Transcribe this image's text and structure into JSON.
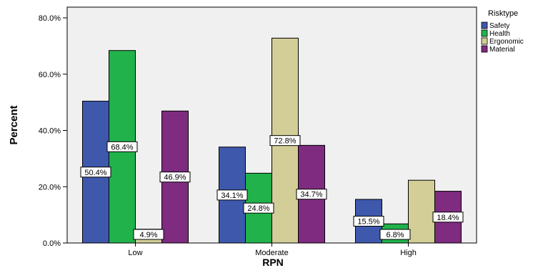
{
  "chart_data": {
    "type": "bar",
    "categories": [
      "Low",
      "Moderate",
      "High"
    ],
    "series": [
      {
        "name": "Safety",
        "color": "#3E58AC",
        "values": [
          50.4,
          34.1,
          15.5
        ],
        "labels": [
          "50.4%",
          "34.1%",
          "15.5%"
        ]
      },
      {
        "name": "Health",
        "color": "#21B24B",
        "values": [
          68.4,
          24.8,
          6.8
        ],
        "labels": [
          "68.4%",
          "24.8%",
          "6.8%"
        ]
      },
      {
        "name": "Ergonomic",
        "color": "#D3CE97",
        "values": [
          4.9,
          72.8,
          22.3
        ],
        "labels": [
          "4.9%",
          "72.8%",
          ""
        ]
      },
      {
        "name": "Material",
        "color": "#7E2B80",
        "values": [
          46.9,
          34.7,
          18.4
        ],
        "labels": [
          "46.9%",
          "34.7%",
          "18.4%"
        ]
      }
    ],
    "xlabel": "RPN",
    "ylabel": "Percent",
    "ylim": [
      0,
      80
    ],
    "yticks": [
      0,
      20,
      40,
      60,
      80
    ],
    "ytick_labels": [
      "0.0%",
      "20.0%",
      "40.0%",
      "60.0%",
      "80.0%"
    ],
    "legend_title": "Risktype",
    "legend_position": "top-right",
    "plot_background": "#F0F0F0",
    "grid": false
  }
}
